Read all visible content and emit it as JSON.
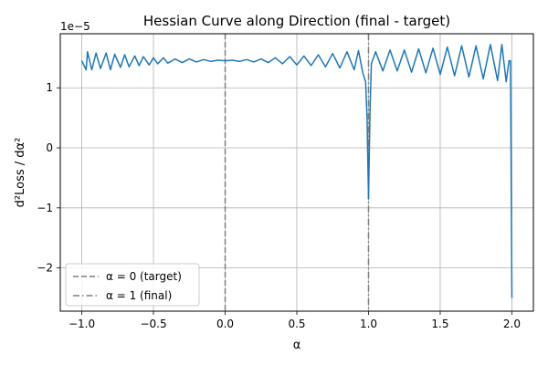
{
  "chart_data": {
    "type": "line",
    "title": "Hessian Curve along Direction (final - target)",
    "xlabel": "α",
    "ylabel": "d²Loss / dα²",
    "offset_text": "1e−5",
    "scale": 1e-05,
    "xlim": [
      -1.15,
      2.15
    ],
    "ylim": [
      -2.72,
      1.9
    ],
    "grid": true,
    "x_ticks": [
      -1.0,
      -0.5,
      0.0,
      0.5,
      1.0,
      1.5,
      2.0
    ],
    "x_tick_labels": [
      "−1.0",
      "−0.5",
      "0.0",
      "0.5",
      "1.0",
      "1.5",
      "2.0"
    ],
    "y_ticks": [
      -2,
      -1,
      0,
      1
    ],
    "y_tick_labels": [
      "−2",
      "−1",
      "0",
      "1"
    ],
    "legend_position": "lower-left",
    "series": [
      {
        "name": "hessian",
        "color": "#1f77b4",
        "style": "solid",
        "x": [
          -1.0,
          -0.97,
          -0.96,
          -0.93,
          -0.9,
          -0.87,
          -0.83,
          -0.8,
          -0.77,
          -0.73,
          -0.7,
          -0.67,
          -0.63,
          -0.6,
          -0.57,
          -0.53,
          -0.5,
          -0.47,
          -0.43,
          -0.4,
          -0.35,
          -0.3,
          -0.25,
          -0.2,
          -0.15,
          -0.1,
          -0.05,
          0.0,
          0.05,
          0.1,
          0.15,
          0.2,
          0.25,
          0.3,
          0.35,
          0.4,
          0.45,
          0.5,
          0.55,
          0.6,
          0.65,
          0.7,
          0.75,
          0.8,
          0.85,
          0.9,
          0.93,
          0.96,
          0.98,
          0.99,
          1.0,
          1.01,
          1.02,
          1.05,
          1.1,
          1.15,
          1.2,
          1.25,
          1.3,
          1.35,
          1.4,
          1.45,
          1.5,
          1.55,
          1.6,
          1.65,
          1.7,
          1.75,
          1.8,
          1.85,
          1.9,
          1.93,
          1.96,
          1.98,
          1.99,
          2.0
        ],
        "y": [
          1.45,
          1.3,
          1.6,
          1.3,
          1.58,
          1.32,
          1.58,
          1.3,
          1.56,
          1.34,
          1.55,
          1.35,
          1.53,
          1.37,
          1.52,
          1.38,
          1.5,
          1.4,
          1.5,
          1.41,
          1.48,
          1.42,
          1.48,
          1.43,
          1.47,
          1.44,
          1.46,
          1.45,
          1.46,
          1.44,
          1.47,
          1.43,
          1.48,
          1.42,
          1.5,
          1.4,
          1.52,
          1.38,
          1.53,
          1.37,
          1.55,
          1.35,
          1.57,
          1.33,
          1.6,
          1.3,
          1.62,
          1.25,
          1.1,
          0.5,
          -0.85,
          0.6,
          1.4,
          1.6,
          1.28,
          1.63,
          1.28,
          1.63,
          1.26,
          1.65,
          1.25,
          1.66,
          1.22,
          1.68,
          1.2,
          1.7,
          1.18,
          1.7,
          1.15,
          1.72,
          1.12,
          1.72,
          1.1,
          1.45,
          1.45,
          -2.5
        ]
      }
    ],
    "vlines": [
      {
        "x": 0,
        "label": "α = 0 (target)",
        "color": "#7f7f7f",
        "style": "dashed"
      },
      {
        "x": 1,
        "label": "α = 1 (final)",
        "color": "#7f7f7f",
        "style": "dashdot"
      }
    ]
  }
}
